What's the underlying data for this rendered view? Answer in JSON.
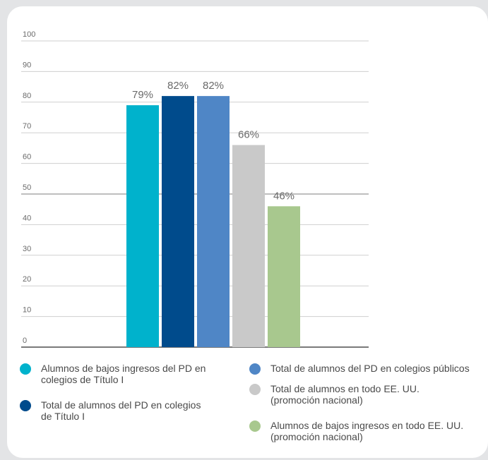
{
  "chart_data": {
    "type": "bar",
    "title": "",
    "xlabel": "",
    "ylabel": "",
    "ylim": [
      0,
      100
    ],
    "yticks": [
      0,
      10,
      20,
      30,
      40,
      50,
      60,
      70,
      80,
      90,
      100
    ],
    "grid": true,
    "legend_position": "bottom",
    "series": [
      {
        "name": "Alumnos de bajos ingresos del PD en colegios de Título I",
        "value": 79,
        "label": "79%",
        "color": "#00b2cc"
      },
      {
        "name": "Total de alumnos del PD en colegios de Título I",
        "value": 82,
        "label": "82%",
        "color": "#004b8c"
      },
      {
        "name": "Total de alumnos del PD en colegios públicos",
        "value": 82,
        "label": "82%",
        "color": "#4f86c6"
      },
      {
        "name": "Total de alumnos en todo EE. UU. (promoción nacional)",
        "value": 66,
        "label": "66%",
        "color": "#c9c9c9"
      },
      {
        "name": "Alumnos de bajos ingresos en todo EE. UU. (promoción nacional)",
        "value": 46,
        "label": "46%",
        "color": "#a8c88e"
      }
    ]
  },
  "legend": [
    {
      "lines": [
        "Alumnos de bajos ingresos del PD en",
        "colegios de Título I"
      ],
      "color": "#00b2cc"
    },
    {
      "lines": [
        "Total de alumnos del PD en colegios",
        "de Título I"
      ],
      "color": "#004b8c"
    },
    {
      "lines": [
        "Total de alumnos del PD en colegios públicos"
      ],
      "color": "#4f86c6"
    },
    {
      "lines": [
        "Total de alumnos en todo EE. UU.",
        "(promoción nacional)"
      ],
      "color": "#c9c9c9"
    },
    {
      "lines": [
        "Alumnos de bajos ingresos en todo EE. UU.",
        "(promoción nacional)"
      ],
      "color": "#a8c88e"
    }
  ]
}
